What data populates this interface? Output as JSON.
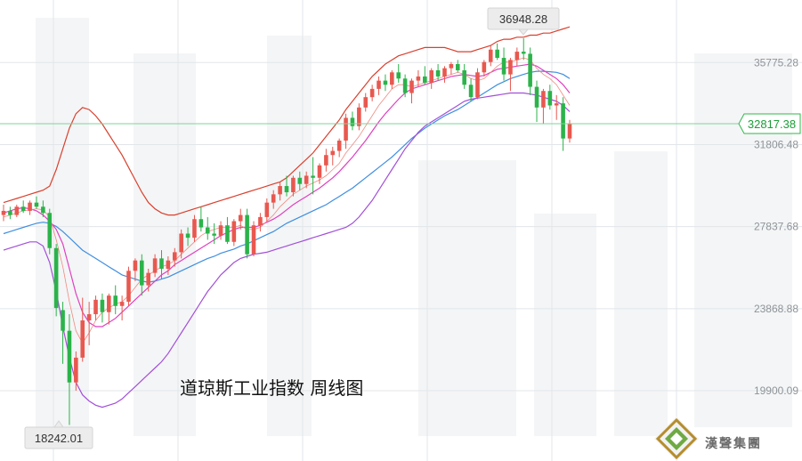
{
  "brand": {
    "name": "漢聲集團"
  },
  "colors": {
    "up": "#e8584f",
    "down": "#2bb34a",
    "ma_blue": "#3f8fe0",
    "ma_magenta": "#e040c0",
    "ma_thin": "#f08a80",
    "band_upper": "#d9402f",
    "band_lower": "#a24fd8",
    "last_line": "#7fd39a"
  },
  "chart_data": {
    "type": "candlestick",
    "title": "道琼斯工业指数  周线图",
    "ylim": [
      16500,
      38800
    ],
    "y_ticks": [
      {
        "value": 35775.28,
        "label": "35775.28"
      },
      {
        "value": 31806.48,
        "label": "31806.48"
      },
      {
        "value": 27837.68,
        "label": "27837.68"
      },
      {
        "value": 23868.88,
        "label": "23868.88"
      },
      {
        "value": 19900.09,
        "label": "19900.09"
      }
    ],
    "annotations": {
      "high": {
        "label": "36948.28",
        "value": 36948.28
      },
      "low": {
        "label": "18242.01",
        "value": 18242.01
      },
      "last": {
        "label": "32817.38",
        "value": 32817.38
      }
    },
    "candles": [
      [
        28400,
        28900,
        28100,
        28600
      ],
      [
        28600,
        28800,
        28200,
        28400
      ],
      [
        28400,
        28900,
        28300,
        28800
      ],
      [
        28800,
        29100,
        28500,
        28600
      ],
      [
        28600,
        29100,
        28400,
        29000
      ],
      [
        29000,
        29300,
        28700,
        28800
      ],
      [
        28800,
        29100,
        28300,
        28500
      ],
      [
        28500,
        28700,
        26500,
        26800
      ],
      [
        26800,
        27000,
        23500,
        23900
      ],
      [
        23800,
        24200,
        21200,
        22800
      ],
      [
        22800,
        23600,
        18242.01,
        20300
      ],
      [
        20300,
        21800,
        19900,
        21500
      ],
      [
        21500,
        24400,
        21300,
        23300
      ],
      [
        23300,
        24200,
        22100,
        23600
      ],
      [
        23600,
        24500,
        23300,
        24300
      ],
      [
        24300,
        24600,
        23200,
        23700
      ],
      [
        23700,
        24600,
        23100,
        24500
      ],
      [
        24500,
        25000,
        23600,
        24000
      ],
      [
        24000,
        24500,
        23300,
        24200
      ],
      [
        24200,
        25900,
        24000,
        25700
      ],
      [
        25700,
        26300,
        25200,
        26200
      ],
      [
        26200,
        26500,
        24500,
        25000
      ],
      [
        25000,
        25800,
        24700,
        25600
      ],
      [
        25600,
        26500,
        25400,
        26300
      ],
      [
        26300,
        26700,
        25300,
        25800
      ],
      [
        25800,
        26400,
        25500,
        26200
      ],
      [
        26200,
        26800,
        25900,
        26600
      ],
      [
        26600,
        27700,
        26300,
        27500
      ],
      [
        27500,
        27800,
        26900,
        27300
      ],
      [
        27300,
        28400,
        27100,
        28200
      ],
      [
        28200,
        28800,
        27600,
        27800
      ],
      [
        27800,
        28300,
        27200,
        27500
      ],
      [
        27500,
        28000,
        27000,
        27400
      ],
      [
        27400,
        28100,
        27200,
        27900
      ],
      [
        27900,
        28300,
        27000,
        27100
      ],
      [
        27100,
        28200,
        26900,
        28100
      ],
      [
        28100,
        28700,
        27700,
        28400
      ],
      [
        28400,
        28700,
        26300,
        26500
      ],
      [
        26500,
        28100,
        26400,
        27900
      ],
      [
        27900,
        28500,
        27600,
        28300
      ],
      [
        28300,
        29200,
        28100,
        29000
      ],
      [
        29000,
        29600,
        28700,
        29400
      ],
      [
        29400,
        30000,
        29100,
        29800
      ],
      [
        29800,
        30300,
        29300,
        29500
      ],
      [
        29500,
        30300,
        29300,
        30200
      ],
      [
        30200,
        30500,
        29600,
        29900
      ],
      [
        29900,
        30500,
        29700,
        30300
      ],
      [
        30300,
        31200,
        29400,
        30200
      ],
      [
        30200,
        30900,
        29900,
        30800
      ],
      [
        30800,
        31600,
        30500,
        31300
      ],
      [
        31300,
        31700,
        30800,
        31500
      ],
      [
        31500,
        32100,
        31200,
        32000
      ],
      [
        32000,
        33300,
        31600,
        33100
      ],
      [
        33100,
        33400,
        32500,
        32700
      ],
      [
        32700,
        33800,
        32500,
        33600
      ],
      [
        33600,
        34300,
        33400,
        34100
      ],
      [
        34100,
        34700,
        33900,
        34500
      ],
      [
        34500,
        35100,
        34200,
        34900
      ],
      [
        34900,
        35200,
        34400,
        34700
      ],
      [
        34700,
        35400,
        34500,
        35300
      ],
      [
        35300,
        35700,
        34800,
        35000
      ],
      [
        35000,
        35200,
        34100,
        34300
      ],
      [
        34300,
        35000,
        33800,
        34900
      ],
      [
        34900,
        35400,
        34600,
        35100
      ],
      [
        35100,
        35600,
        34700,
        34800
      ],
      [
        34800,
        35500,
        34500,
        35400
      ],
      [
        35400,
        35700,
        34900,
        35100
      ],
      [
        35100,
        35600,
        34800,
        35500
      ],
      [
        35500,
        35800,
        35200,
        35700
      ],
      [
        35700,
        35900,
        35300,
        35400
      ],
      [
        35400,
        35700,
        34500,
        34700
      ],
      [
        34700,
        35000,
        33900,
        34100
      ],
      [
        34100,
        35500,
        34000,
        35300
      ],
      [
        35300,
        35900,
        35100,
        35800
      ],
      [
        35800,
        36600,
        35600,
        36400
      ],
      [
        36400,
        36700,
        35900,
        36000
      ],
      [
        36000,
        36500,
        34900,
        35200
      ],
      [
        35200,
        36000,
        34400,
        35900
      ],
      [
        35900,
        36500,
        35600,
        36300
      ],
      [
        36300,
        36948.28,
        35900,
        36200
      ],
      [
        36200,
        36500,
        34200,
        34600
      ],
      [
        34600,
        34900,
        32900,
        33600
      ],
      [
        33600,
        34500,
        32800,
        34400
      ],
      [
        34400,
        34700,
        33500,
        33700
      ],
      [
        33700,
        34200,
        33000,
        33800
      ],
      [
        33800,
        34100,
        31500,
        32100
      ],
      [
        32100,
        33000,
        31900,
        32817.38
      ]
    ],
    "series": [
      {
        "key": "ma_blue",
        "values": [
          27500,
          27600,
          27700,
          27800,
          27900,
          28000,
          28050,
          28000,
          27850,
          27600,
          27300,
          27000,
          26700,
          26500,
          26300,
          26100,
          25900,
          25700,
          25500,
          25400,
          25300,
          25200,
          25150,
          25200,
          25300,
          25400,
          25550,
          25700,
          25850,
          26000,
          26150,
          26300,
          26400,
          26550,
          26650,
          26750,
          26900,
          27000,
          27150,
          27300,
          27450,
          27600,
          27800,
          28000,
          28150,
          28300,
          28450,
          28600,
          28750,
          28900,
          29100,
          29300,
          29500,
          29700,
          29950,
          30200,
          30450,
          30700,
          30950,
          31200,
          31500,
          31800,
          32100,
          32350,
          32600,
          32800,
          33000,
          33200,
          33350,
          33500,
          33700,
          33900,
          34100,
          34300,
          34500,
          34700,
          34850,
          35000,
          35100,
          35200,
          35300,
          35350,
          35350,
          35330,
          35300,
          35200,
          35000
        ]
      },
      {
        "key": "ma_magenta",
        "values": [
          28500,
          28600,
          28700,
          28750,
          28700,
          28600,
          28400,
          28100,
          27700,
          27000,
          25800,
          24600,
          23700,
          23200,
          23000,
          23000,
          23200,
          23400,
          23700,
          24000,
          24300,
          24600,
          24900,
          25200,
          25500,
          25700,
          26000,
          26200,
          26400,
          26600,
          26800,
          27000,
          27200,
          27400,
          27550,
          27700,
          27800,
          27800,
          27800,
          27900,
          28050,
          28200,
          28400,
          28650,
          28900,
          29100,
          29300,
          29500,
          29700,
          29950,
          30200,
          30500,
          30850,
          31200,
          31600,
          32000,
          32450,
          32900,
          33300,
          33650,
          34000,
          34300,
          34500,
          34600,
          34700,
          34800,
          34900,
          35000,
          35100,
          35150,
          35200,
          35150,
          35100,
          35150,
          35300,
          35450,
          35500,
          35550,
          35600,
          35650,
          35700,
          35600,
          35400,
          35200,
          35000,
          34700,
          34300
        ]
      },
      {
        "key": "ma_thin",
        "values": [
          28300,
          28400,
          28500,
          28600,
          28650,
          28700,
          28650,
          28300,
          27200,
          25900,
          24200,
          22800,
          22200,
          22700,
          23300,
          23700,
          23900,
          24100,
          24200,
          24500,
          24900,
          25300,
          25500,
          25700,
          25900,
          26000,
          26200,
          26500,
          26800,
          27100,
          27400,
          27600,
          27700,
          27800,
          27800,
          27800,
          27900,
          27700,
          27700,
          27800,
          28100,
          28400,
          28800,
          29100,
          29400,
          29600,
          29800,
          29950,
          30100,
          30300,
          30600,
          30900,
          31400,
          31800,
          32200,
          32700,
          33200,
          33700,
          34100,
          34500,
          34700,
          34700,
          34600,
          34700,
          34800,
          34900,
          35000,
          35100,
          35200,
          35300,
          35200,
          35000,
          34900,
          35000,
          35300,
          35600,
          35800,
          35800,
          35900,
          36000,
          35900,
          35500,
          35200,
          35000,
          34700,
          34200,
          33700
        ]
      },
      {
        "key": "band_upper",
        "values": [
          29000,
          29100,
          29200,
          29300,
          29400,
          29500,
          29600,
          29800,
          30600,
          31600,
          32600,
          33300,
          33600,
          33500,
          33200,
          32800,
          32300,
          31800,
          31300,
          30700,
          30100,
          29500,
          29000,
          28700,
          28500,
          28400,
          28400,
          28500,
          28600,
          28700,
          28800,
          28900,
          29000,
          29100,
          29200,
          29300,
          29400,
          29500,
          29600,
          29700,
          29800,
          29900,
          30000,
          30200,
          30500,
          30800,
          31100,
          31400,
          31800,
          32200,
          32600,
          33000,
          33500,
          33900,
          34300,
          34700,
          35100,
          35400,
          35700,
          35900,
          36100,
          36200,
          36300,
          36400,
          36500,
          36500,
          36500,
          36500,
          36400,
          36300,
          36300,
          36300,
          36400,
          36500,
          36600,
          36800,
          36900,
          36900,
          37000,
          37000,
          37100,
          37100,
          37200,
          37200,
          37300,
          37400,
          37500
        ]
      },
      {
        "key": "band_lower",
        "values": [
          26700,
          26800,
          26900,
          27000,
          27100,
          27100,
          26900,
          26100,
          24700,
          23000,
          21500,
          20300,
          19700,
          19400,
          19200,
          19100,
          19200,
          19300,
          19500,
          19800,
          20100,
          20400,
          20700,
          21000,
          21300,
          21700,
          22200,
          22700,
          23200,
          23700,
          24200,
          24700,
          25100,
          25500,
          25800,
          26100,
          26300,
          26400,
          26500,
          26550,
          26600,
          26700,
          26800,
          26900,
          27000,
          27100,
          27200,
          27300,
          27400,
          27500,
          27600,
          27700,
          27800,
          28000,
          28300,
          28700,
          29100,
          29600,
          30100,
          30600,
          31100,
          31600,
          32000,
          32400,
          32700,
          32900,
          33100,
          33300,
          33500,
          33700,
          33900,
          34000,
          34050,
          34100,
          34150,
          34200,
          34250,
          34300,
          34300,
          34300,
          34250,
          34200,
          34100,
          34000,
          33900,
          33700,
          33400
        ]
      }
    ]
  }
}
